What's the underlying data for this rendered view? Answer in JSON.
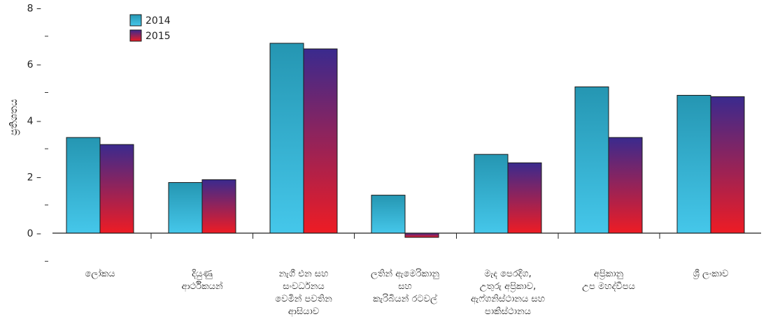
{
  "chart_data": {
    "type": "bar",
    "ylabel": "ප්‍රතිශතය",
    "ylim": [
      -1,
      8
    ],
    "yticks": [
      0,
      2,
      4,
      6,
      8
    ],
    "grid": false,
    "legend_position": "top-left",
    "categories": [
      [
        "ලෝකය"
      ],
      [
        "දියුණු",
        "ආර්ථිකයන්"
      ],
      [
        "නැගී එන සහ",
        "සංවර්ධනය",
        "වෙමින් පවතින",
        "ආසියාව"
      ],
      [
        "ලතින් ඇමෙරිකානු",
        "සහ",
        "කැරිබියන් රටවල්"
      ],
      [
        "මැද පෙරදිග,",
        "උතුරු අප්‍රිකාව,",
        "ඇෆ්ගනිස්ථානය සහ",
        "පාකිස්ථානය"
      ],
      [
        "අප්‍රිකානු",
        "උප මහද්වීපය"
      ],
      [
        "ශ්‍රී ලංකාව"
      ]
    ],
    "series": [
      {
        "name": "2014",
        "values": [
          3.4,
          1.8,
          6.75,
          1.35,
          2.8,
          5.2,
          4.9
        ],
        "color_top": "#2596b2",
        "color_bottom": "#45c7ea"
      },
      {
        "name": "2015",
        "values": [
          3.15,
          1.9,
          6.55,
          -0.15,
          2.5,
          3.4,
          4.85
        ],
        "color_top": "#3a2a8e",
        "color_bottom": "#ee1c24"
      }
    ]
  }
}
